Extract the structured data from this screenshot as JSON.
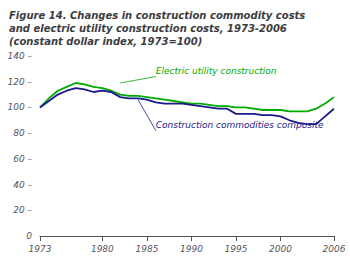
{
  "chart_data": {
    "type": "line",
    "title": "Figure 14. Changes in construction commodity costs\nand electric utility construction costs, 1973-2006\n(constant dollar index, 1973=100)",
    "x": [
      1973,
      1974,
      1975,
      1976,
      1977,
      1978,
      1979,
      1980,
      1981,
      1982,
      1983,
      1984,
      1985,
      1986,
      1987,
      1988,
      1989,
      1990,
      1991,
      1992,
      1993,
      1994,
      1995,
      1996,
      1997,
      1998,
      1999,
      2000,
      2001,
      2002,
      2003,
      2004,
      2005,
      2006
    ],
    "series": [
      {
        "color": "#00aa00",
        "values": [
          100,
          107,
          113,
          116,
          119,
          118,
          116,
          115,
          113,
          110,
          109,
          109,
          108,
          107,
          106,
          105,
          104,
          103,
          103,
          102,
          101,
          101,
          100,
          100,
          99,
          98,
          98,
          98,
          97,
          97,
          97,
          99,
          103,
          108
        ],
        "annotation": {
          "text": "Electric utility construction",
          "x": 1982,
          "y": 119,
          "text_x": 1986,
          "text_y": 124
        }
      },
      {
        "color": "#1a1a8c",
        "values": [
          100,
          105,
          110,
          113,
          115,
          114,
          112,
          113,
          112,
          108,
          107,
          107,
          106,
          104,
          103,
          103,
          103,
          102,
          101,
          100,
          99,
          99,
          95,
          95,
          95,
          94,
          94,
          93,
          90,
          88,
          87,
          87,
          93,
          99
        ],
        "annotation": {
          "text": "Construction commodities composite",
          "x": 1984,
          "y": 106,
          "text_x": 1986,
          "text_y": 82
        }
      }
    ],
    "xlim": [
      1973,
      2006
    ],
    "xticks": [
      1973,
      1980,
      1985,
      1990,
      1995,
      2000,
      2006
    ],
    "ylim": [
      0,
      140
    ],
    "yticks": [
      0,
      {
        "value": 20,
        "label": "20 –"
      },
      {
        "value": 40,
        "label": "40 –"
      },
      {
        "value": 60,
        "label": "60 –"
      },
      {
        "value": 80,
        "label": "80 –"
      },
      {
        "value": 100,
        "label": "100 –"
      },
      {
        "value": 120,
        "label": "120 –"
      },
      {
        "value": 140,
        "label": "140 –"
      }
    ],
    "grid": false
  }
}
